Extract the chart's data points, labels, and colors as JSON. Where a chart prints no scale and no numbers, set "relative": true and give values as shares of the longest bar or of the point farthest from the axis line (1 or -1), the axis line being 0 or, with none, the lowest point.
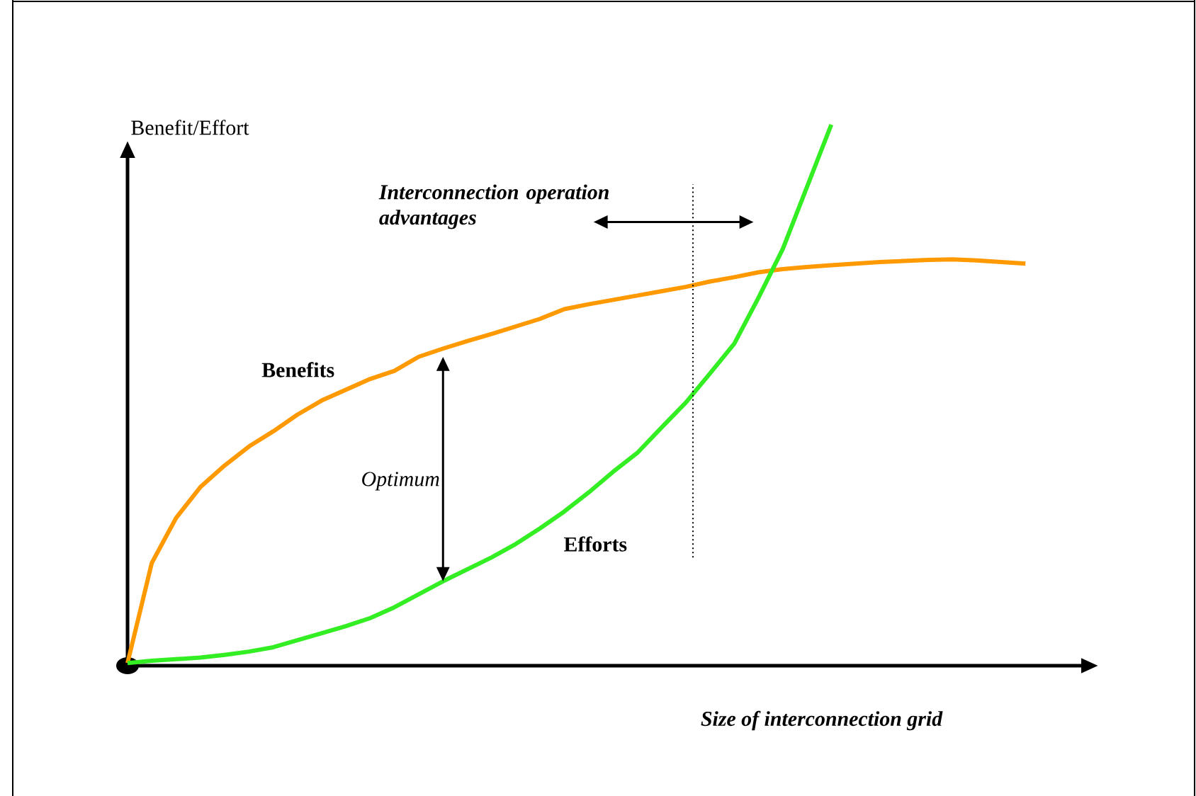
{
  "chart_data": {
    "type": "line",
    "relative": true,
    "xlabel": "Size of interconnection grid",
    "ylabel": "Benefit/Effort",
    "categories": [
      null,
      null,
      null,
      null,
      null,
      null,
      null,
      null,
      null,
      null,
      null,
      null,
      null,
      null,
      null,
      null,
      null,
      null,
      null,
      null,
      null,
      null,
      null,
      null,
      null,
      null,
      null,
      null,
      null,
      null,
      null,
      null,
      null,
      null,
      null,
      null,
      null,
      null
    ],
    "series": [
      {
        "name": "Benefits",
        "color": "#ff9900",
        "values": [
          0.005,
          0.19,
          0.273,
          0.33,
          0.37,
          0.405,
          0.433,
          0.464,
          0.49,
          0.51,
          0.53,
          0.545,
          0.571,
          0.586,
          0.6,
          0.613,
          0.627,
          0.641,
          0.659,
          0.668,
          0.676,
          0.684,
          0.692,
          0.7,
          0.71,
          0.718,
          0.727,
          0.733,
          0.737,
          0.74,
          0.743,
          0.746,
          0.748,
          0.75,
          0.751,
          0.749,
          0.746,
          0.743
        ]
      },
      {
        "name": "Efforts",
        "color": "#33ee22",
        "values": [
          0.005,
          0.009,
          0.012,
          0.015,
          0.02,
          0.026,
          0.034,
          0.047,
          0.06,
          0.073,
          0.088,
          0.108,
          0.132,
          0.156,
          0.178,
          0.2,
          0.225,
          0.254,
          0.285,
          0.32,
          0.358,
          0.393,
          0.44,
          0.486,
          0.54,
          0.595,
          0.68,
          0.77,
          0.885,
          1.0,
          null,
          null,
          null,
          null,
          null,
          null,
          null,
          null
        ]
      }
    ],
    "annotations": [
      "*Interconnection operation advantages*",
      "Optimum"
    ]
  }
}
